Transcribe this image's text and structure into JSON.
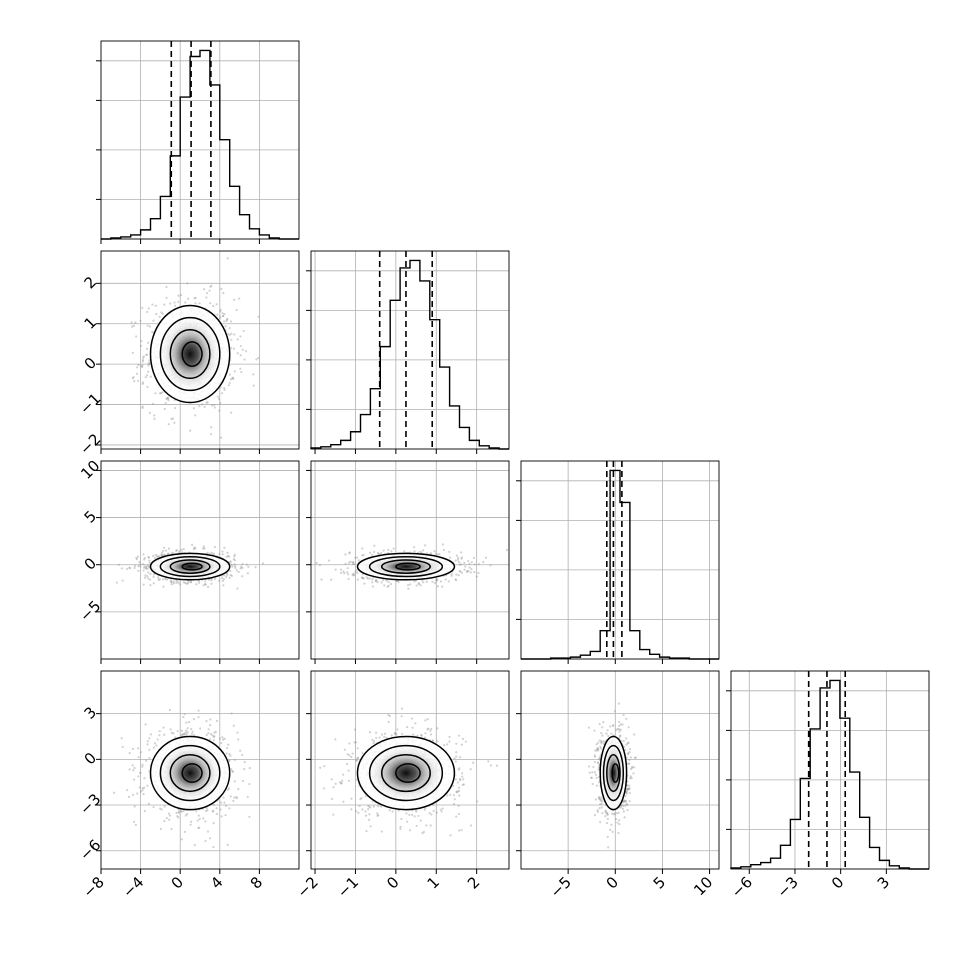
{
  "chart_data": {
    "type": "corner",
    "grid": true,
    "legend": "none",
    "parameters": [
      {
        "id": "p0",
        "center": 1.0,
        "sigma": 2.0,
        "q16": -0.9,
        "q50": 1.1,
        "q84": 3.1,
        "ticks": [
          -8,
          -4,
          0,
          4,
          8
        ],
        "tick_labels": [
          "−8",
          "−4",
          "0",
          "4",
          "8"
        ],
        "range": [
          -8,
          12
        ]
      },
      {
        "id": "p1",
        "center": 0.25,
        "sigma": 0.6,
        "q16": -0.4,
        "q50": 0.25,
        "q84": 0.9,
        "ticks": [
          -2,
          -1,
          0,
          1,
          2
        ],
        "tick_labels": [
          "−2",
          "−1",
          "0",
          "1",
          "2"
        ],
        "range": [
          -2.1,
          2.8
        ]
      },
      {
        "id": "p2",
        "center": -0.2,
        "sigma": 0.7,
        "q16": -0.9,
        "q50": -0.2,
        "q84": 0.7,
        "ticks": [
          -5,
          0,
          5,
          10
        ],
        "tick_labels": [
          "−5",
          "0",
          "5",
          "10"
        ],
        "range": [
          -10,
          11
        ]
      },
      {
        "id": "p3",
        "center": -0.9,
        "sigma": 1.2,
        "q16": -2.1,
        "q50": -0.9,
        "q84": 0.3,
        "ticks": [
          -6,
          -3,
          0,
          3
        ],
        "tick_labels": [
          "−6",
          "−3",
          "0",
          "3"
        ],
        "range": [
          -7.2,
          5.8
        ]
      }
    ],
    "histograms": [
      {
        "param": "p0",
        "bin_edges": [
          -8,
          -7,
          -6,
          -5,
          -4,
          -3,
          -2,
          -1,
          0,
          1,
          2,
          3,
          4,
          5,
          6,
          7,
          8,
          9,
          10,
          11,
          12
        ],
        "counts": [
          0,
          1,
          2,
          4,
          9,
          20,
          42,
          82,
          140,
          180,
          186,
          152,
          98,
          52,
          24,
          10,
          4,
          1,
          0,
          0
        ]
      },
      {
        "param": "p1",
        "bin_edges": [
          -2.1,
          -1.855,
          -1.61,
          -1.365,
          -1.12,
          -0.875,
          -0.63,
          -0.385,
          -0.14,
          0.105,
          0.35,
          0.595,
          0.84,
          1.085,
          1.33,
          1.575,
          1.82,
          2.065,
          2.31,
          2.555,
          2.8
        ],
        "counts": [
          1,
          2,
          4,
          8,
          16,
          32,
          56,
          95,
          138,
          168,
          175,
          156,
          120,
          76,
          40,
          20,
          8,
          3,
          1,
          0
        ]
      },
      {
        "param": "p2",
        "bin_edges": [
          -10,
          -8.95,
          -7.9,
          -6.85,
          -5.8,
          -4.75,
          -3.7,
          -2.65,
          -1.6,
          -0.55,
          0.5,
          1.55,
          2.6,
          3.65,
          4.7,
          5.75,
          6.8,
          7.85,
          8.9,
          9.95,
          11
        ],
        "counts": [
          0,
          0,
          0,
          1,
          1,
          2,
          4,
          8,
          30,
          200,
          166,
          30,
          10,
          5,
          2,
          1,
          1,
          0,
          0,
          0
        ]
      },
      {
        "param": "p3",
        "bin_edges": [
          -7.2,
          -6.55,
          -5.9,
          -5.25,
          -4.6,
          -3.95,
          -3.3,
          -2.65,
          -2.0,
          -1.35,
          -0.7,
          -0.05,
          0.6,
          1.25,
          1.9,
          2.55,
          3.2,
          3.85,
          4.5,
          5.15,
          5.8
        ],
        "counts": [
          1,
          2,
          4,
          6,
          10,
          22,
          46,
          84,
          130,
          168,
          175,
          140,
          90,
          48,
          20,
          8,
          3,
          1,
          0,
          0
        ]
      }
    ],
    "pairs": [
      {
        "x": "p0",
        "y": "p1",
        "center": [
          1.0,
          0.25
        ],
        "sigma": [
          2.0,
          0.6
        ]
      },
      {
        "x": "p0",
        "y": "p2",
        "center": [
          1.0,
          -0.2
        ],
        "sigma": [
          2.0,
          0.7
        ]
      },
      {
        "x": "p1",
        "y": "p2",
        "center": [
          0.25,
          -0.2
        ],
        "sigma": [
          0.6,
          0.7
        ]
      },
      {
        "x": "p0",
        "y": "p3",
        "center": [
          1.0,
          -0.9
        ],
        "sigma": [
          2.0,
          1.2
        ]
      },
      {
        "x": "p1",
        "y": "p3",
        "center": [
          0.25,
          -0.9
        ],
        "sigma": [
          0.6,
          1.2
        ]
      },
      {
        "x": "p2",
        "y": "p3",
        "center": [
          -0.2,
          -0.9
        ],
        "sigma": [
          0.7,
          1.2
        ]
      }
    ],
    "contour_levels_sigma": [
      0.5,
      1.0,
      1.5,
      2.0
    ]
  }
}
